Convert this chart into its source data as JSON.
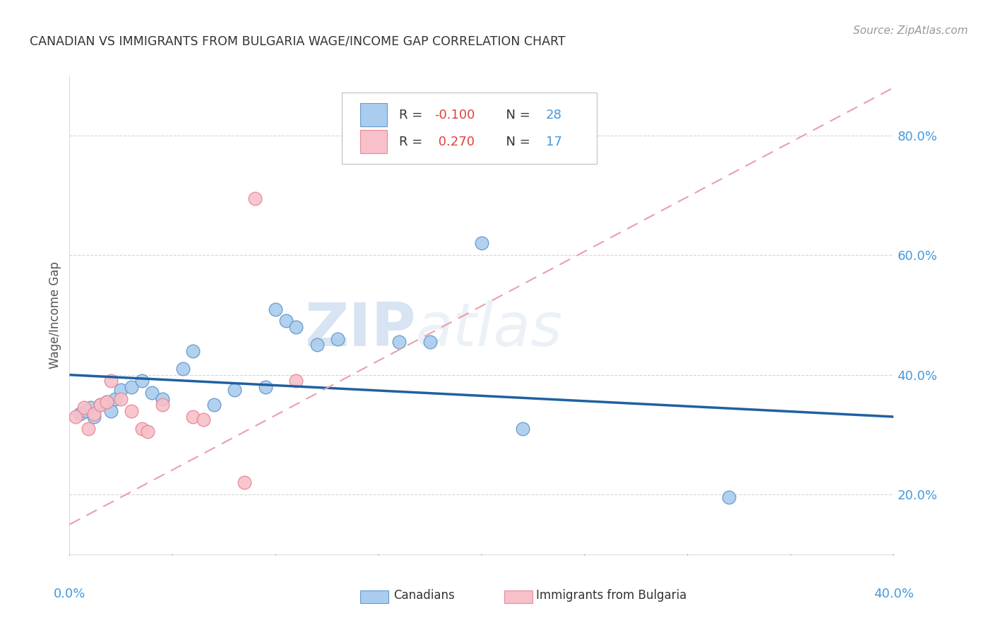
{
  "title": "CANADIAN VS IMMIGRANTS FROM BULGARIA WAGE/INCOME GAP CORRELATION CHART",
  "source": "Source: ZipAtlas.com",
  "ylabel": "Wage/Income Gap",
  "watermark_zip": "ZIP",
  "watermark_atlas": "atlas",
  "legend": {
    "r_canadian": "-0.100",
    "n_canadian": "28",
    "r_bulgarian": "0.270",
    "n_bulgarian": "17"
  },
  "ytick_labels": [
    "20.0%",
    "40.0%",
    "60.0%",
    "80.0%"
  ],
  "ytick_values": [
    0.2,
    0.4,
    0.6,
    0.8
  ],
  "xlim": [
    0.0,
    0.4
  ],
  "ylim": [
    0.1,
    0.9
  ],
  "canadian_scatter": [
    [
      0.005,
      0.335
    ],
    [
      0.008,
      0.34
    ],
    [
      0.01,
      0.345
    ],
    [
      0.012,
      0.33
    ],
    [
      0.015,
      0.35
    ],
    [
      0.018,
      0.355
    ],
    [
      0.02,
      0.34
    ],
    [
      0.022,
      0.36
    ],
    [
      0.025,
      0.375
    ],
    [
      0.03,
      0.38
    ],
    [
      0.035,
      0.39
    ],
    [
      0.04,
      0.37
    ],
    [
      0.045,
      0.36
    ],
    [
      0.055,
      0.41
    ],
    [
      0.06,
      0.44
    ],
    [
      0.07,
      0.35
    ],
    [
      0.08,
      0.375
    ],
    [
      0.095,
      0.38
    ],
    [
      0.1,
      0.51
    ],
    [
      0.105,
      0.49
    ],
    [
      0.11,
      0.48
    ],
    [
      0.12,
      0.45
    ],
    [
      0.13,
      0.46
    ],
    [
      0.16,
      0.455
    ],
    [
      0.175,
      0.455
    ],
    [
      0.2,
      0.62
    ],
    [
      0.22,
      0.31
    ],
    [
      0.32,
      0.195
    ]
  ],
  "bulgarian_scatter": [
    [
      0.003,
      0.33
    ],
    [
      0.007,
      0.345
    ],
    [
      0.009,
      0.31
    ],
    [
      0.012,
      0.335
    ],
    [
      0.015,
      0.35
    ],
    [
      0.018,
      0.355
    ],
    [
      0.02,
      0.39
    ],
    [
      0.025,
      0.36
    ],
    [
      0.03,
      0.34
    ],
    [
      0.035,
      0.31
    ],
    [
      0.038,
      0.305
    ],
    [
      0.045,
      0.35
    ],
    [
      0.06,
      0.33
    ],
    [
      0.065,
      0.325
    ],
    [
      0.085,
      0.22
    ],
    [
      0.09,
      0.695
    ],
    [
      0.11,
      0.39
    ]
  ],
  "canadian_line_color": "#2060a0",
  "canadian_scatter_color": "#aaccee",
  "canadian_scatter_edge": "#6699cc",
  "bulgarian_line_color": "#e8a0a8",
  "bulgarian_scatter_color": "#f8c0c8",
  "bulgarian_scatter_edge": "#e88898",
  "grid_color": "#cccccc",
  "background_color": "#ffffff",
  "title_color": "#333333",
  "axis_label_color": "#4499dd",
  "source_color": "#999999",
  "legend_r_color": "#e04040",
  "legend_n_color": "#4499dd"
}
